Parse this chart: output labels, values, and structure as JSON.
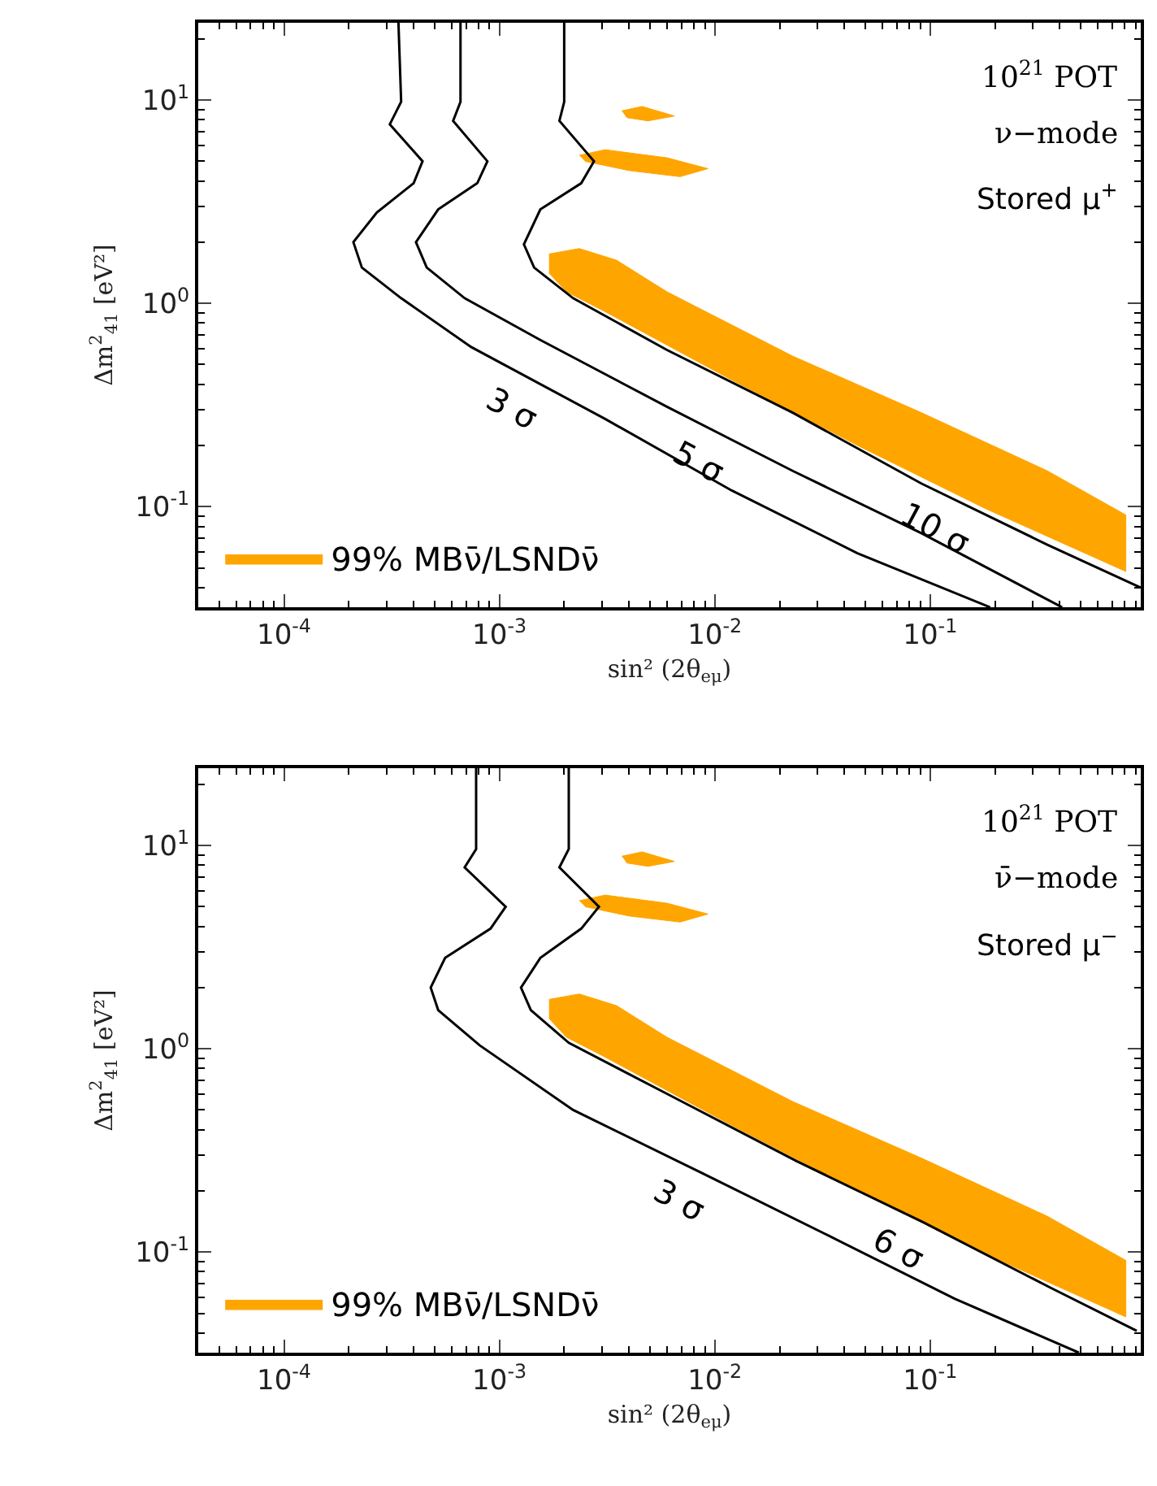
{
  "chart_data": [
    {
      "type": "line",
      "xlabel": "sin² (2θ$_{eμ}$)",
      "ylabel": "Δm$^{2}$$_{41}$ [eV²]",
      "log": "xy",
      "legend": "bottom left",
      "xlim": [
        4e-05,
        0.95
      ],
      "ylim": [
        0.032,
        24
      ],
      "xticks": [
        {
          "value": 0.0001,
          "label": "10$^{-4}$"
        },
        {
          "value": 0.001,
          "label": "10$^{-3}$"
        },
        {
          "value": 0.01,
          "label": "10$^{-2}$"
        },
        {
          "value": 0.1,
          "label": "10$^{-1}$"
        }
      ],
      "yticks": [
        {
          "value": 0.1,
          "label": "10$^{-1}$"
        },
        {
          "value": 1,
          "label": "10$^{0}$"
        },
        {
          "value": 10,
          "label": "10$^{1}$"
        }
      ],
      "annotations": [
        "10$^{21}$ POT",
        "ν−mode",
        "Stored μ$^{+}$",
        {
          "text": "3 σ",
          "x": 0.00135,
          "y": 0.43
        },
        {
          "text": "5 σ",
          "x": 0.01,
          "y": 0.235
        },
        {
          "text": "10 σ",
          "x": 0.126,
          "y": 0.11
        }
      ],
      "series": [
        {
          "type": "area",
          "name": "99% MBν̄/LSNDν̄",
          "color": "#ffa500",
          "x": [
            0.0017,
            0.00235,
            0.0035,
            0.006,
            0.023,
            0.091,
            0.35,
            0.81,
            0.81,
            0.18,
            0.046,
            0.012,
            0.0031,
            0.00205,
            0.0017
          ],
          "values": [
            1.75,
            1.86,
            1.63,
            1.14,
            0.55,
            0.29,
            0.15,
            0.091,
            0.048,
            0.098,
            0.2,
            0.42,
            0.91,
            1.14,
            1.41
          ]
        },
        {
          "type": "area",
          "color": "#ffa500",
          "x": [
            0.0037,
            0.0046,
            0.0065,
            0.0049,
            0.0039
          ],
          "values": [
            8.85,
            9.3,
            8.35,
            7.9,
            8.2
          ]
        },
        {
          "type": "area",
          "color": "#ffa500",
          "x": [
            0.00235,
            0.0031,
            0.006,
            0.0093,
            0.0069,
            0.004,
            0.0025
          ],
          "values": [
            5.35,
            5.7,
            5.2,
            4.6,
            4.2,
            4.5,
            5.0
          ]
        },
        {
          "color": "#000000",
          "x": [
            0.00034,
            0.00035,
            0.00031,
            0.00044,
            0.0004,
            0.00027,
            0.00021,
            0.00023,
            0.00035,
            0.00074,
            0.0031,
            0.012,
            0.046,
            0.19
          ],
          "values": [
            24,
            9.8,
            7.6,
            5.0,
            3.9,
            2.8,
            2.0,
            1.5,
            1.06,
            0.61,
            0.27,
            0.12,
            0.059,
            0.032
          ]
        },
        {
          "color": "#000000",
          "x": [
            0.00066,
            0.00066,
            0.00061,
            0.00088,
            0.00079,
            0.00052,
            0.00041,
            0.00046,
            0.00069,
            0.00155,
            0.006,
            0.023,
            0.091,
            0.41
          ],
          "values": [
            24,
            9.8,
            7.9,
            5.0,
            3.9,
            2.9,
            2.0,
            1.5,
            1.06,
            0.66,
            0.31,
            0.15,
            0.074,
            0.032
          ]
        },
        {
          "color": "#000000",
          "x": [
            0.002,
            0.002,
            0.0019,
            0.00275,
            0.0024,
            0.00155,
            0.0013,
            0.00145,
            0.0022,
            0.006,
            0.023,
            0.091,
            0.35,
            0.95
          ],
          "values": [
            24,
            9.8,
            7.9,
            5.0,
            3.9,
            2.9,
            1.95,
            1.5,
            1.06,
            0.59,
            0.29,
            0.13,
            0.065,
            0.04
          ]
        }
      ]
    },
    {
      "type": "line",
      "xlabel": "sin² (2θ$_{eμ}$)",
      "ylabel": "Δm$^{2}$$_{41}$ [eV²]",
      "log": "xy",
      "legend": "bottom left",
      "xlim": [
        4e-05,
        0.95
      ],
      "ylim": [
        0.032,
        24
      ],
      "xticks": [
        {
          "value": 0.0001,
          "label": "10$^{-4}$"
        },
        {
          "value": 0.001,
          "label": "10$^{-3}$"
        },
        {
          "value": 0.01,
          "label": "10$^{-2}$"
        },
        {
          "value": 0.1,
          "label": "10$^{-1}$"
        }
      ],
      "yticks": [
        {
          "value": 0.1,
          "label": "10$^{-1}$"
        },
        {
          "value": 1,
          "label": "10$^{0}$"
        },
        {
          "value": 10,
          "label": "10$^{1}$"
        }
      ],
      "annotations": [
        "10$^{21}$ POT",
        "ν̄−mode",
        "Stored μ$^{−}$",
        {
          "text": "3 σ",
          "x": 0.0081,
          "y": 0.254
        },
        {
          "text": "6 σ",
          "x": 0.085,
          "y": 0.147
        }
      ],
      "series": [
        {
          "type": "area",
          "name": "99% MBν̄/LSNDν̄",
          "color": "#ffa500",
          "x": [
            0.0017,
            0.00235,
            0.0035,
            0.006,
            0.023,
            0.091,
            0.35,
            0.81,
            0.81,
            0.18,
            0.046,
            0.012,
            0.0031,
            0.00205,
            0.0017
          ],
          "values": [
            1.75,
            1.86,
            1.63,
            1.14,
            0.55,
            0.29,
            0.15,
            0.091,
            0.048,
            0.098,
            0.2,
            0.42,
            0.91,
            1.14,
            1.41
          ]
        },
        {
          "type": "area",
          "color": "#ffa500",
          "x": [
            0.0037,
            0.0046,
            0.0065,
            0.0049,
            0.0039
          ],
          "values": [
            8.85,
            9.3,
            8.35,
            7.9,
            8.2
          ]
        },
        {
          "type": "area",
          "color": "#ffa500",
          "x": [
            0.00235,
            0.0031,
            0.006,
            0.0093,
            0.0069,
            0.004,
            0.0025
          ],
          "values": [
            5.35,
            5.7,
            5.2,
            4.6,
            4.2,
            4.5,
            5.0
          ]
        },
        {
          "color": "#000000",
          "x": [
            0.00078,
            0.00078,
            0.00069,
            0.00107,
            0.00091,
            0.00056,
            0.00048,
            0.00052,
            0.00081,
            0.0022,
            0.0087,
            0.034,
            0.13,
            0.49
          ],
          "values": [
            24,
            9.6,
            7.8,
            5.0,
            3.9,
            2.8,
            2.0,
            1.55,
            1.04,
            0.5,
            0.245,
            0.12,
            0.059,
            0.032
          ]
        },
        {
          "color": "#000000",
          "x": [
            0.0021,
            0.0021,
            0.0019,
            0.0029,
            0.0024,
            0.00155,
            0.00126,
            0.0014,
            0.0021,
            0.0062,
            0.024,
            0.093,
            0.36,
            0.91
          ],
          "values": [
            24,
            9.6,
            7.8,
            5.0,
            3.9,
            2.8,
            2.0,
            1.55,
            1.07,
            0.59,
            0.28,
            0.14,
            0.067,
            0.041
          ]
        }
      ]
    }
  ]
}
